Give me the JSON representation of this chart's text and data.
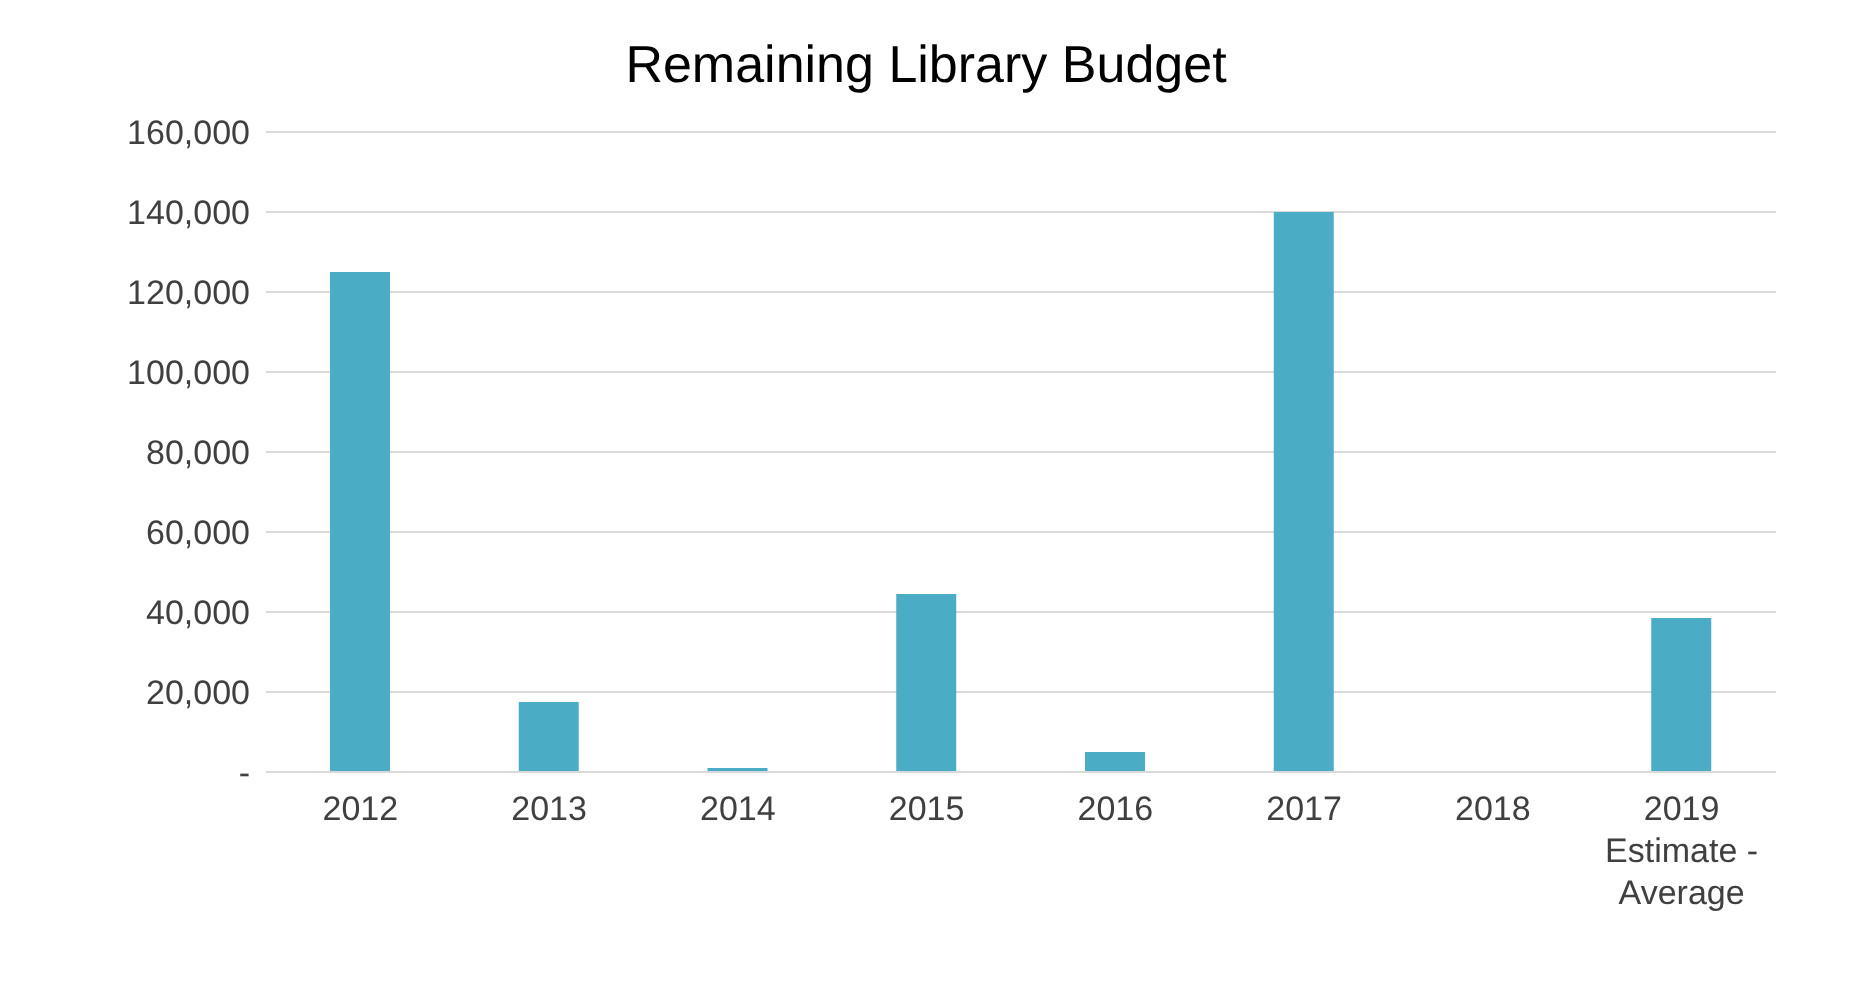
{
  "chart_data": {
    "type": "bar",
    "title": "Remaining Library Budget",
    "categories": [
      "2012",
      "2013",
      "2014",
      "2015",
      "2016",
      "2017",
      "2018",
      "2019\nEstimate -\nAverage"
    ],
    "values": [
      125000,
      17500,
      1000,
      44500,
      5000,
      140000,
      0,
      38500
    ],
    "color": "#4bacc6",
    "ylim": [
      0,
      160000
    ],
    "yticks": [
      {
        "value": 0,
        "label": "-"
      },
      {
        "value": 20000,
        "label": "20,000"
      },
      {
        "value": 40000,
        "label": "40,000"
      },
      {
        "value": 60000,
        "label": "60,000"
      },
      {
        "value": 80000,
        "label": "80,000"
      },
      {
        "value": 100000,
        "label": "100,000"
      },
      {
        "value": 120000,
        "label": "120,000"
      },
      {
        "value": 140000,
        "label": "140,000"
      },
      {
        "value": 160000,
        "label": "160,000"
      }
    ],
    "grid": "y"
  }
}
